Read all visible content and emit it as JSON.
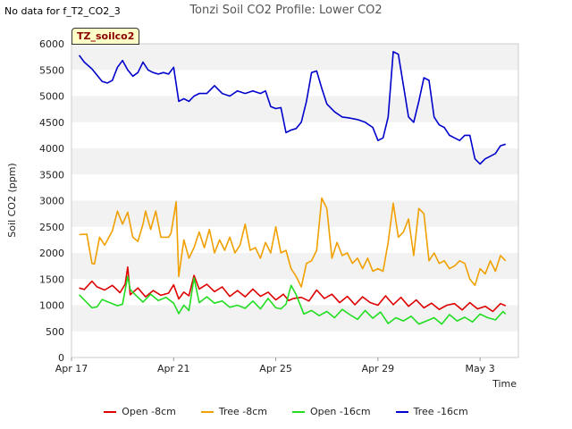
{
  "header": {
    "nodata": "No data for f_T2_CO2_3",
    "title": "Tonzi Soil CO2 Profile: Lower CO2",
    "tag": "TZ_soilco2"
  },
  "chart_data": {
    "type": "line",
    "title": "Tonzi Soil CO2 Profile: Lower CO2",
    "xlabel": "Time",
    "ylabel": "Soil CO2 (ppm)",
    "ylim": [
      0,
      6000
    ],
    "yticks": [
      0,
      500,
      1000,
      1500,
      2000,
      2500,
      3000,
      3500,
      4000,
      4500,
      5000,
      5500,
      6000
    ],
    "xlim": [
      0,
      17.5
    ],
    "xticks": [
      {
        "label": "Apr 17",
        "day": 0
      },
      {
        "label": "Apr 21",
        "day": 4
      },
      {
        "label": "Apr 25",
        "day": 8
      },
      {
        "label": "Apr 29",
        "day": 12
      },
      {
        "label": "May 3",
        "day": 16
      }
    ],
    "grid": "horizontal bands",
    "series": [
      {
        "name": "Open -8cm",
        "color": "#dd0000",
        "x": [
          0.3,
          0.5,
          0.8,
          1.0,
          1.3,
          1.6,
          1.9,
          2.1,
          2.2,
          2.3,
          2.6,
          2.9,
          3.2,
          3.5,
          3.8,
          4.0,
          4.2,
          4.4,
          4.6,
          4.8,
          5.0,
          5.3,
          5.6,
          5.9,
          6.2,
          6.5,
          6.8,
          7.1,
          7.4,
          7.7,
          8.0,
          8.3,
          8.5,
          8.7,
          9.0,
          9.3,
          9.6,
          9.9,
          10.2,
          10.5,
          10.8,
          11.1,
          11.4,
          11.7,
          12.0,
          12.3,
          12.6,
          12.9,
          13.2,
          13.5,
          13.8,
          14.1,
          14.4,
          14.7,
          15.0,
          15.3,
          15.6,
          15.9,
          16.2,
          16.5,
          16.8,
          17.0
        ],
        "y": [
          1330,
          1300,
          1460,
          1350,
          1290,
          1380,
          1240,
          1400,
          1730,
          1200,
          1330,
          1160,
          1280,
          1190,
          1230,
          1390,
          1120,
          1250,
          1180,
          1570,
          1310,
          1400,
          1260,
          1350,
          1170,
          1280,
          1160,
          1310,
          1170,
          1250,
          1100,
          1210,
          1090,
          1130,
          1150,
          1080,
          1290,
          1130,
          1210,
          1050,
          1170,
          1010,
          1160,
          1050,
          1000,
          1180,
          1010,
          1150,
          980,
          1100,
          950,
          1040,
          920,
          1000,
          1030,
          910,
          1050,
          930,
          980,
          880,
          1030,
          990
        ]
      },
      {
        "name": "Tree -8cm",
        "color": "#f0a000",
        "x": [
          0.3,
          0.6,
          0.8,
          0.9,
          1.1,
          1.3,
          1.6,
          1.8,
          2.0,
          2.2,
          2.4,
          2.6,
          2.8,
          2.9,
          3.1,
          3.3,
          3.5,
          3.8,
          3.9,
          4.1,
          4.2,
          4.4,
          4.6,
          4.8,
          5.0,
          5.2,
          5.4,
          5.6,
          5.8,
          6.0,
          6.2,
          6.4,
          6.6,
          6.8,
          7.0,
          7.2,
          7.4,
          7.6,
          7.8,
          8.0,
          8.2,
          8.4,
          8.6,
          8.8,
          9.0,
          9.2,
          9.4,
          9.6,
          9.8,
          10.0,
          10.2,
          10.4,
          10.6,
          10.8,
          11.0,
          11.2,
          11.4,
          11.6,
          11.8,
          12.0,
          12.2,
          12.4,
          12.6,
          12.8,
          13.0,
          13.2,
          13.4,
          13.6,
          13.8,
          14.0,
          14.2,
          14.4,
          14.6,
          14.8,
          15.0,
          15.2,
          15.4,
          15.6,
          15.8,
          16.0,
          16.2,
          16.4,
          16.6,
          16.8,
          17.0
        ],
        "y": [
          2350,
          2360,
          1800,
          1790,
          2300,
          2150,
          2420,
          2800,
          2550,
          2780,
          2300,
          2220,
          2550,
          2800,
          2450,
          2800,
          2300,
          2300,
          2380,
          2980,
          1550,
          2250,
          1900,
          2100,
          2400,
          2100,
          2450,
          2000,
          2250,
          2050,
          2300,
          2000,
          2150,
          2550,
          2050,
          2100,
          1900,
          2200,
          2000,
          2500,
          2000,
          2050,
          1700,
          1550,
          1350,
          1800,
          1850,
          2050,
          3050,
          2850,
          1900,
          2200,
          1950,
          2000,
          1800,
          1900,
          1700,
          1900,
          1650,
          1700,
          1650,
          2200,
          2950,
          2300,
          2400,
          2650,
          1950,
          2850,
          2750,
          1850,
          2000,
          1800,
          1850,
          1700,
          1750,
          1850,
          1800,
          1500,
          1380,
          1700,
          1600,
          1850,
          1650,
          1950,
          1850
        ]
      },
      {
        "name": "Open -16cm",
        "color": "#22dd22",
        "x": [
          0.3,
          0.5,
          0.8,
          1.0,
          1.2,
          1.5,
          1.8,
          2.0,
          2.2,
          2.3,
          2.5,
          2.8,
          3.1,
          3.4,
          3.7,
          4.0,
          4.2,
          4.4,
          4.6,
          4.8,
          5.0,
          5.3,
          5.6,
          5.9,
          6.2,
          6.5,
          6.8,
          7.1,
          7.4,
          7.7,
          8.0,
          8.2,
          8.4,
          8.6,
          8.8,
          9.1,
          9.4,
          9.7,
          10.0,
          10.3,
          10.6,
          10.9,
          11.2,
          11.5,
          11.8,
          12.1,
          12.4,
          12.7,
          13.0,
          13.3,
          13.6,
          13.9,
          14.2,
          14.5,
          14.8,
          15.1,
          15.4,
          15.7,
          16.0,
          16.3,
          16.6,
          16.9,
          17.0
        ],
        "y": [
          1200,
          1100,
          950,
          970,
          1110,
          1050,
          990,
          1020,
          1550,
          1300,
          1200,
          1060,
          1210,
          1090,
          1150,
          1040,
          840,
          1000,
          900,
          1520,
          1050,
          1160,
          1040,
          1080,
          960,
          1000,
          940,
          1080,
          930,
          1130,
          950,
          930,
          1020,
          1380,
          1200,
          830,
          900,
          800,
          880,
          760,
          920,
          820,
          730,
          900,
          750,
          870,
          650,
          760,
          700,
          790,
          640,
          700,
          760,
          640,
          820,
          700,
          770,
          680,
          830,
          760,
          720,
          880,
          830
        ]
      },
      {
        "name": "Tree -16cm",
        "color": "#0000cc",
        "x": [
          0.3,
          0.5,
          0.8,
          1.0,
          1.2,
          1.4,
          1.6,
          1.8,
          2.0,
          2.2,
          2.4,
          2.6,
          2.8,
          3.0,
          3.2,
          3.4,
          3.6,
          3.8,
          4.0,
          4.2,
          4.4,
          4.6,
          4.8,
          5.0,
          5.3,
          5.6,
          5.9,
          6.2,
          6.5,
          6.8,
          7.1,
          7.4,
          7.6,
          7.8,
          8.0,
          8.2,
          8.4,
          8.6,
          8.8,
          9.0,
          9.2,
          9.4,
          9.6,
          9.8,
          10.0,
          10.3,
          10.6,
          10.9,
          11.2,
          11.5,
          11.8,
          12.0,
          12.2,
          12.4,
          12.6,
          12.8,
          13.0,
          13.2,
          13.4,
          13.6,
          13.8,
          14.0,
          14.2,
          14.4,
          14.6,
          14.8,
          15.0,
          15.2,
          15.4,
          15.6,
          15.8,
          16.0,
          16.2,
          16.4,
          16.6,
          16.8,
          17.0
        ],
        "y": [
          5780,
          5650,
          5520,
          5400,
          5280,
          5250,
          5300,
          5550,
          5680,
          5500,
          5380,
          5450,
          5650,
          5500,
          5450,
          5420,
          5450,
          5420,
          5550,
          4900,
          4950,
          4900,
          5000,
          5050,
          5050,
          5200,
          5050,
          5000,
          5100,
          5050,
          5100,
          5050,
          5100,
          4800,
          4760,
          4780,
          4300,
          4350,
          4380,
          4500,
          4900,
          5450,
          5480,
          5150,
          4850,
          4700,
          4600,
          4580,
          4550,
          4500,
          4400,
          4150,
          4200,
          4600,
          5850,
          5800,
          5200,
          4600,
          4500,
          4900,
          5350,
          5300,
          4600,
          4450,
          4400,
          4250,
          4200,
          4150,
          4250,
          4250,
          3800,
          3700,
          3800,
          3850,
          3900,
          4050,
          4080
        ]
      }
    ]
  }
}
